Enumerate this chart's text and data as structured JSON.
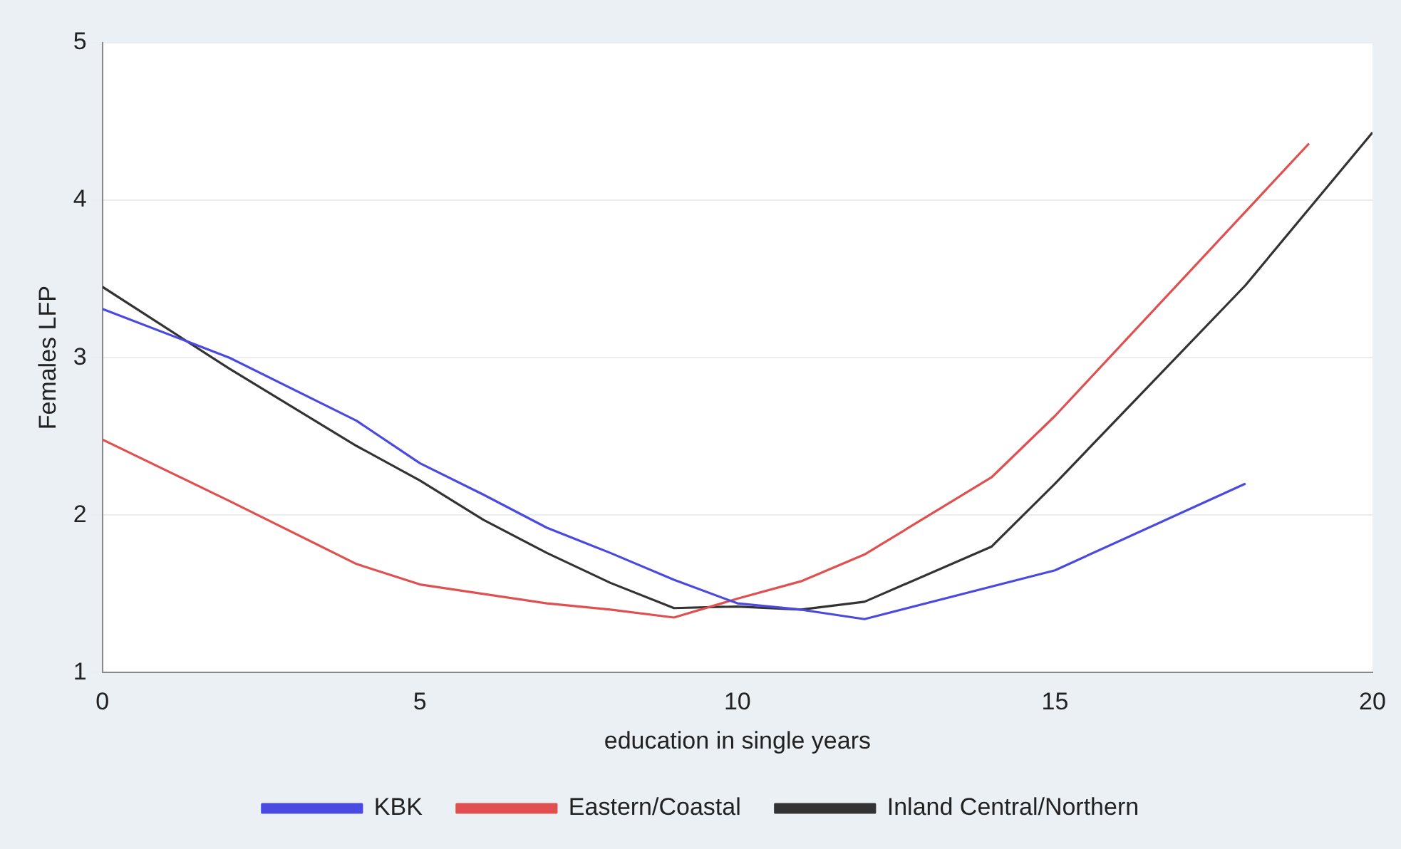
{
  "chart_data": {
    "type": "line",
    "xlabel": "education in single years",
    "ylabel": "Females LFP",
    "xlim": [
      0,
      20
    ],
    "xticks": [
      0,
      5,
      10,
      15,
      20
    ],
    "ylim": [
      1,
      5
    ],
    "yticks": [
      1,
      2,
      3,
      4,
      5
    ],
    "grid": "y",
    "legend": "bottom",
    "marker": "none",
    "line_style": "solid",
    "series": [
      {
        "name": "KBK",
        "color": "#4a4ae0",
        "x": [
          0,
          2,
          4,
          5,
          6,
          7,
          8,
          9,
          10,
          11,
          12,
          15,
          18
        ],
        "values": [
          3.31,
          3.0,
          2.6,
          2.33,
          2.13,
          1.92,
          1.76,
          1.59,
          1.44,
          1.4,
          1.34,
          1.65,
          2.2
        ]
      },
      {
        "name": "Eastern/Coastal",
        "color": "#e05050",
        "x": [
          0,
          2,
          4,
          5,
          7,
          8,
          9,
          10,
          11,
          12,
          14,
          15,
          19
        ],
        "values": [
          2.48,
          2.09,
          1.69,
          1.56,
          1.44,
          1.4,
          1.35,
          1.47,
          1.58,
          1.75,
          2.24,
          2.63,
          4.36
        ]
      },
      {
        "name": "Inland Central/Northern",
        "color": "#333333",
        "x": [
          0,
          2,
          4,
          5,
          6,
          7,
          8,
          9,
          10,
          11,
          12,
          14,
          15,
          18,
          20
        ],
        "values": [
          3.45,
          2.93,
          2.44,
          2.22,
          1.97,
          1.76,
          1.57,
          1.41,
          1.42,
          1.4,
          1.45,
          1.8,
          2.2,
          3.46,
          4.43
        ]
      }
    ]
  }
}
